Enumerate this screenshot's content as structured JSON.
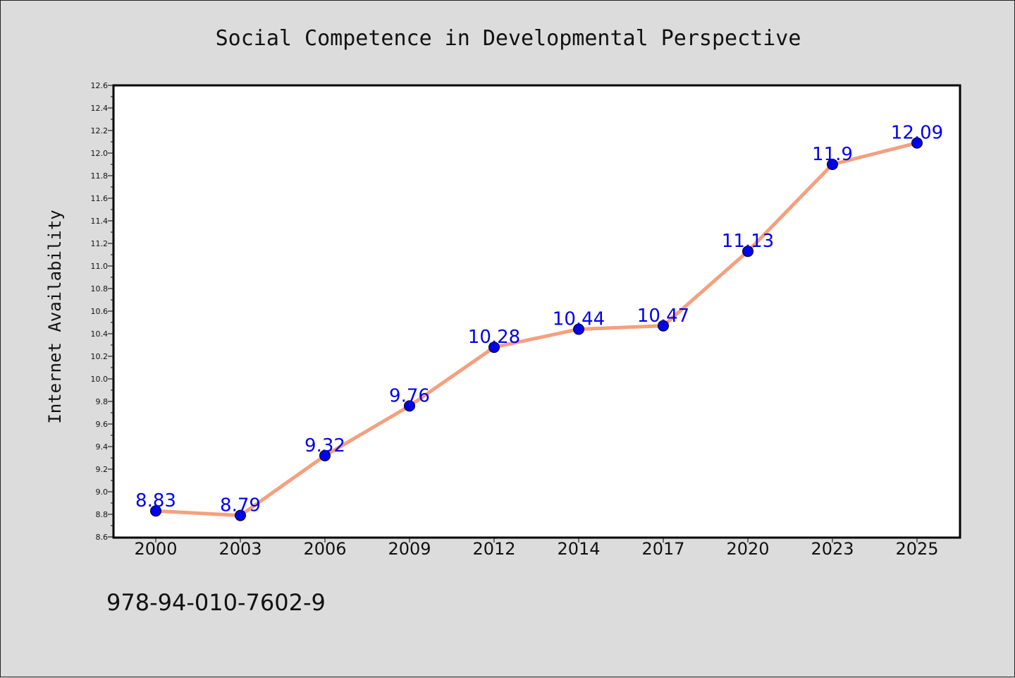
{
  "chart_data": {
    "type": "line",
    "title": "Social Competence in Developmental Perspective",
    "xlabel": "",
    "ylabel": "Internet Availability",
    "categories": [
      "2000",
      "2003",
      "2006",
      "2009",
      "2012",
      "2014",
      "2017",
      "2020",
      "2023",
      "2025"
    ],
    "series": [
      {
        "values": [
          8.83,
          8.79,
          9.32,
          9.76,
          10.28,
          10.44,
          10.47,
          11.13,
          11.9,
          12.09
        ]
      }
    ],
    "data_labels": [
      "8.83",
      "8.79",
      "9.32",
      "9.76",
      "10.28",
      "10.44",
      "10.47",
      "11.13",
      "11.9",
      "12.09"
    ],
    "ylim": [
      8.6,
      12.6
    ],
    "yticks": [
      "8.6",
      "8.8",
      "9.0",
      "9.2",
      "9.4",
      "9.6",
      "9.8",
      "10.0",
      "10.2",
      "10.4",
      "10.6",
      "10.8",
      "11.0",
      "11.2",
      "11.4",
      "11.6",
      "11.8",
      "12.0",
      "12.2",
      "12.4",
      "12.6"
    ],
    "grid": false,
    "line_color": "#f4a07f",
    "marker_color": "#0000ee",
    "label_color": "#0000ee"
  },
  "footnote": "978-94-010-7602-9"
}
